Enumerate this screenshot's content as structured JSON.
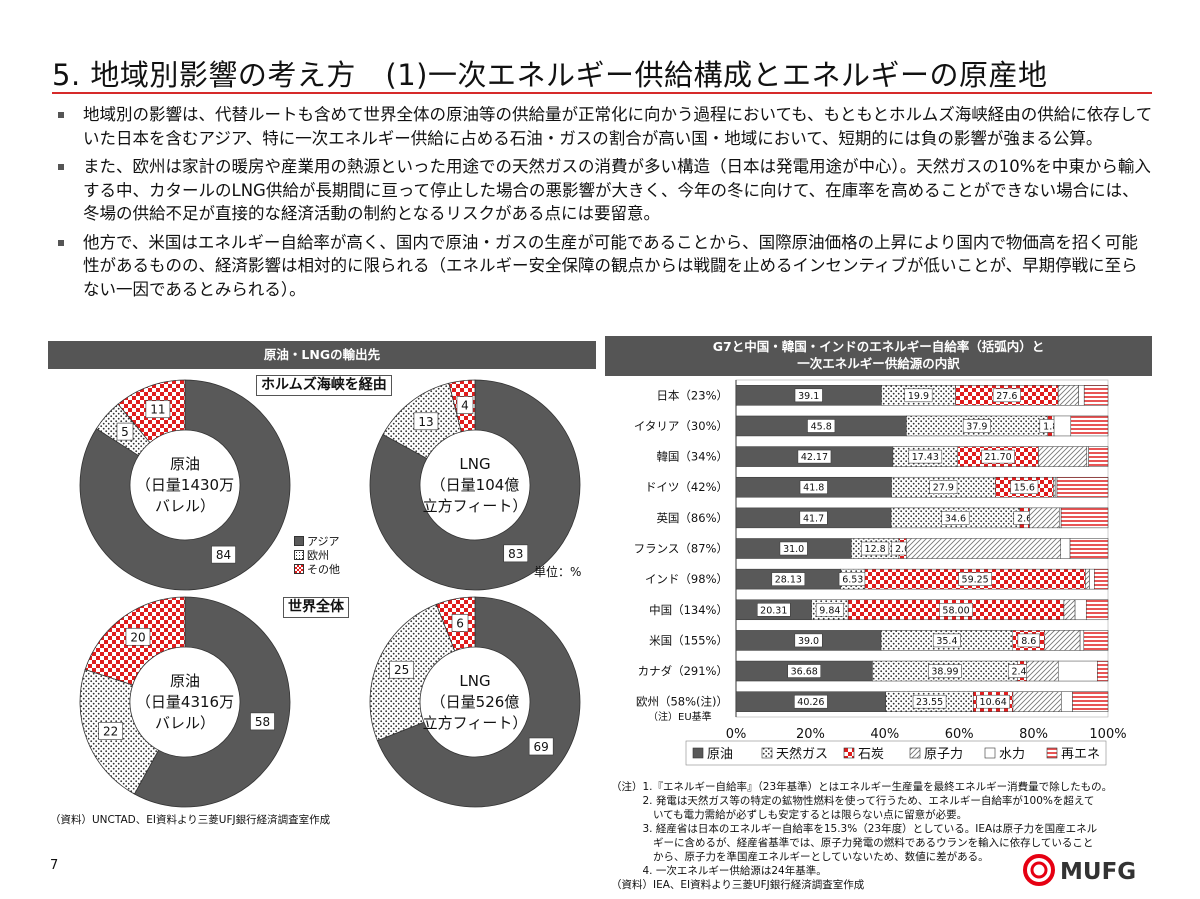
{
  "page": {
    "title": "5. 地域別影響の考え方　(1)一次エネルギー供給構成とエネルギーの原産地",
    "page_number": "7"
  },
  "bullets": [
    "地域別の影響は、代替ルートも含めて世界全体の原油等の供給量が正常化に向かう過程においても、もともとホルムズ海峡経由の供給に依存していた日本を含むアジア、特に一次エネルギー供給に占める石油・ガスの割合が高い国・地域において、短期的には負の影響が強まる公算。",
    "また、欧州は家計の暖房や産業用の熱源といった用途での天然ガスの消費が多い構造（日本は発電用途が中心）。天然ガスの10%を中東から輸入する中、カタールのLNG供給が長期間に亘って停止した場合の悪影響が大きく、今年の冬に向けて、在庫率を高めることができない場合には、冬場の供給不足が直接的な経済活動の制約となるリスクがある点には要留意。",
    "他方で、米国はエネルギー自給率が高く、国内で原油・ガスの生産が可能であることから、国際原油価格の上昇により国内で物価高を招く可能性があるものの、経済影響は相対的に限られる（エネルギー安全保障の観点からは戦闘を止めるインセンティブが低いことが、早期停戦に至らない一因であるとみられる）。"
  ],
  "left_panel": {
    "header": "原油・LNGの輸出先",
    "box_hormuz": "ホルムズ海峡を経由",
    "box_world": "世界全体",
    "unit": "単位：%",
    "legend": [
      "アジア",
      "欧州",
      "その他"
    ],
    "donuts": [
      {
        "center": [
          "原油",
          "（日量1430万",
          "バレル）"
        ],
        "values": [
          84,
          5,
          11
        ]
      },
      {
        "center": [
          "LNG",
          "（日量104億",
          "立方フィート）"
        ],
        "values": [
          83,
          13,
          4
        ]
      },
      {
        "center": [
          "原油",
          "（日量4316万",
          "バレル）"
        ],
        "values": [
          58,
          22,
          20
        ]
      },
      {
        "center": [
          "LNG",
          "（日量526億",
          "立方フィート）"
        ],
        "values": [
          69,
          25,
          6
        ]
      }
    ],
    "source": "（資料）UNCTAD、EI資料より三菱UFJ銀行経済調査室作成"
  },
  "right_panel": {
    "header_line1": "G7と中国・韓国・インドのエネルギー自給率（括弧内）と",
    "header_line2": "一次エネルギー供給源の内訳",
    "sublabel": "（注）EU基準",
    "notes": [
      "（注）1.『エネルギー自給率』（23年基準）とはエネルギー生産量を最終エネルギー消費量で除したもの。",
      "　　　2. 発電は天然ガス等の特定の鉱物性燃料を使って行うため、エネルギー自給率が100%を超えて",
      "　　　　いても電力需給が必ずしも安定するとは限らない点に留意が必要。",
      "　　　3. 経産省は日本のエネルギー自給率を15.3%（23年度）としている。IEAは原子力を国産エネル",
      "　　　　ギーに含めるが、経産省基準では、原子力発電の燃料であるウランを輸入に依存していること",
      "　　　　から、原子力を準国産エネルギーとしていないため、数値に差がある。",
      "　　　4. 一次エネルギー供給源は24年基準。",
      "（資料）IEA、EI資料より三菱UFJ銀行経済調査室作成"
    ]
  },
  "logo": {
    "text": "MUFG"
  },
  "colors": {
    "accent_red": "#d62a2a",
    "dark": "#555555",
    "oil": "#595959"
  },
  "chart_data": [
    {
      "type": "pie",
      "title": "原油（日量1430万バレル）",
      "group": "ホルムズ海峡を経由",
      "categories": [
        "アジア",
        "欧州",
        "その他"
      ],
      "values": [
        84,
        5,
        11
      ]
    },
    {
      "type": "pie",
      "title": "LNG（日量104億立方フィート）",
      "group": "ホルムズ海峡を経由",
      "categories": [
        "アジア",
        "欧州",
        "その他"
      ],
      "values": [
        83,
        13,
        4
      ]
    },
    {
      "type": "pie",
      "title": "原油（日量4316万バレル）",
      "group": "世界全体",
      "categories": [
        "アジア",
        "欧州",
        "その他"
      ],
      "values": [
        58,
        22,
        20
      ]
    },
    {
      "type": "pie",
      "title": "LNG（日量526億立方フィート）",
      "group": "世界全体",
      "categories": [
        "アジア",
        "欧州",
        "その他"
      ],
      "values": [
        69,
        25,
        6
      ]
    },
    {
      "type": "bar",
      "orientation": "horizontal",
      "stacked": true,
      "title": "G7と中国・韓国・インドのエネルギー自給率（括弧内）と一次エネルギー供給源の内訳",
      "categories": [
        "日本（23%）",
        "イタリア（30%）",
        "韓国（34%）",
        "ドイツ（42%）",
        "英国（86%）",
        "フランス（87%）",
        "インド（98%）",
        "中国（134%）",
        "米国（155%）",
        "カナダ（291%）",
        "欧州（58%(注)）"
      ],
      "xlim": [
        0,
        100
      ],
      "xticks": [
        "0%",
        "20%",
        "40%",
        "60%",
        "80%",
        "100%"
      ],
      "legend_position": "bottom",
      "series": [
        {
          "name": "原油",
          "values": [
            39.1,
            45.8,
            42.17,
            41.8,
            41.7,
            31.0,
            28.13,
            20.31,
            39.0,
            36.68,
            40.26
          ],
          "labels": [
            "39.1",
            "45.8",
            "42.17",
            "41.8",
            "41.7",
            "31.0",
            "28.13",
            "20.31",
            "39.0",
            "36.68",
            "40.26"
          ]
        },
        {
          "name": "天然ガス",
          "values": [
            19.9,
            37.9,
            17.43,
            27.9,
            34.6,
            12.8,
            6.53,
            9.84,
            35.4,
            38.99,
            23.55
          ],
          "labels": [
            "19.9",
            "37.9",
            "17.43",
            "27.9",
            "34.6",
            "12.8",
            "6.53",
            "9.84",
            "35.4",
            "38.99",
            "23.55"
          ]
        },
        {
          "name": "石炭",
          "values": [
            27.6,
            1.8,
            21.7,
            15.6,
            2.6,
            2.0,
            59.25,
            58.0,
            8.6,
            2.46,
            10.64
          ],
          "labels": [
            "27.6",
            "1.8",
            "21.70",
            "15.6",
            "2.6",
            "2.0",
            "59.25",
            "58.00",
            "8.6",
            "2.46",
            "10.64"
          ]
        },
        {
          "name": "原子力",
          "values": [
            5.5,
            0.0,
            13.0,
            0.5,
            8.0,
            41.5,
            1.1,
            3.0,
            9.5,
            8.5,
            13.0
          ]
        },
        {
          "name": "水力",
          "values": [
            1.5,
            4.5,
            0.5,
            0.5,
            0.5,
            2.5,
            1.3,
            3.0,
            1.0,
            10.5,
            3.0
          ]
        },
        {
          "name": "再エネ",
          "values": [
            6.4,
            10.0,
            5.2,
            13.7,
            12.6,
            10.2,
            3.69,
            5.85,
            6.5,
            2.86,
            9.55
          ]
        }
      ]
    }
  ]
}
